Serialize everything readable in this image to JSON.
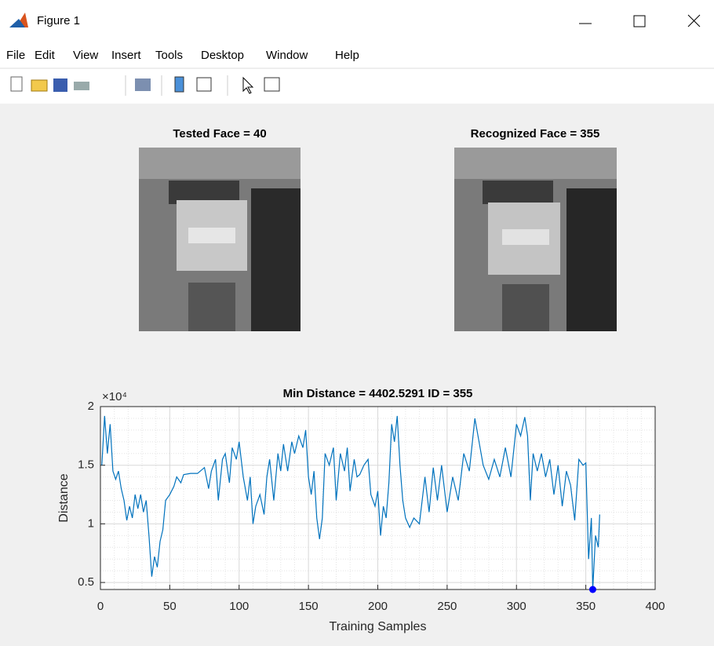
{
  "window": {
    "title": "Figure 1",
    "menu": [
      "File",
      "Edit",
      "View",
      "Insert",
      "Tools",
      "Desktop",
      "Window",
      "Help"
    ]
  },
  "images": [
    {
      "title": "Tested Face = 40"
    },
    {
      "title": "Recognized Face = 355"
    }
  ],
  "chart_data": {
    "type": "line",
    "title": "Min Distance = 4402.5291 ID = 355",
    "x_label": "Training Samples",
    "y_label": "Distance",
    "y_exponent_label": "×10⁴",
    "xlim": [
      0,
      400
    ],
    "xticks": [
      0,
      50,
      100,
      150,
      200,
      250,
      300,
      350,
      400
    ],
    "ylim": [
      4402.5291,
      20000
    ],
    "yticks": [
      {
        "value": 5000,
        "label": "0.5"
      },
      {
        "value": 10000,
        "label": "1"
      },
      {
        "value": 15000,
        "label": "1.5"
      },
      {
        "value": 20000,
        "label": "2"
      }
    ],
    "grid": true,
    "minor_grid": true,
    "x": [
      1,
      3,
      5,
      7,
      9,
      11,
      13,
      15,
      17,
      19,
      21,
      23,
      25,
      27,
      29,
      31,
      33,
      35,
      37,
      39,
      41,
      43,
      45,
      47,
      50,
      53,
      55,
      58,
      60,
      65,
      70,
      75,
      78,
      80,
      83,
      85,
      88,
      90,
      93,
      95,
      98,
      100,
      103,
      106,
      108,
      110,
      112,
      115,
      118,
      120,
      122,
      125,
      128,
      130,
      132,
      135,
      138,
      140,
      143,
      146,
      148,
      150,
      152,
      154,
      156,
      158,
      160,
      162,
      165,
      168,
      170,
      173,
      176,
      178,
      180,
      183,
      185,
      187,
      190,
      193,
      195,
      198,
      200,
      202,
      204,
      206,
      208,
      210,
      212,
      214,
      216,
      218,
      220,
      223,
      226,
      230,
      234,
      237,
      240,
      243,
      246,
      250,
      254,
      258,
      262,
      266,
      270,
      273,
      276,
      280,
      284,
      288,
      292,
      296,
      300,
      303,
      306,
      308,
      310,
      312,
      315,
      318,
      321,
      324,
      327,
      330,
      333,
      336,
      339,
      342,
      345,
      348,
      350,
      352,
      354,
      355,
      357,
      359,
      360
    ],
    "series": [
      {
        "name": "Distance",
        "color": "#0072bd",
        "values": [
          15000,
          19200,
          16000,
          18500,
          14500,
          13800,
          14500,
          13000,
          12000,
          10300,
          11500,
          10500,
          12500,
          11300,
          12500,
          11000,
          12000,
          9000,
          5500,
          7200,
          6300,
          8500,
          9500,
          12000,
          12500,
          13200,
          14000,
          13500,
          14200,
          14300,
          14300,
          14800,
          13000,
          14500,
          15500,
          12000,
          15500,
          16000,
          13500,
          16500,
          15500,
          17000,
          14000,
          12000,
          14000,
          10000,
          11500,
          12500,
          10800,
          14000,
          15500,
          12000,
          16000,
          14500,
          16800,
          14500,
          17000,
          16000,
          17500,
          16500,
          18000,
          14000,
          12500,
          14500,
          10500,
          8700,
          10500,
          16000,
          15000,
          16500,
          12000,
          16000,
          14500,
          16500,
          12800,
          15500,
          14000,
          14200,
          15000,
          15500,
          12500,
          11500,
          12800,
          9000,
          11500,
          10500,
          13500,
          18500,
          17000,
          19200,
          15000,
          12000,
          10500,
          9700,
          10500,
          10000,
          14000,
          11000,
          14800,
          12000,
          15000,
          11000,
          14000,
          12000,
          16000,
          14500,
          19000,
          17000,
          15000,
          13800,
          15500,
          14000,
          16500,
          14000,
          18500,
          17500,
          19100,
          17500,
          12000,
          16000,
          14500,
          16000,
          14000,
          15500,
          12500,
          15000,
          11500,
          14500,
          13300,
          10300,
          15500,
          15000,
          15200,
          7000,
          10500,
          4402.5291,
          9000,
          8000,
          10800
        ]
      }
    ],
    "highlight": {
      "x": 355,
      "y": 4402.5291,
      "color": "#0000ff"
    }
  }
}
